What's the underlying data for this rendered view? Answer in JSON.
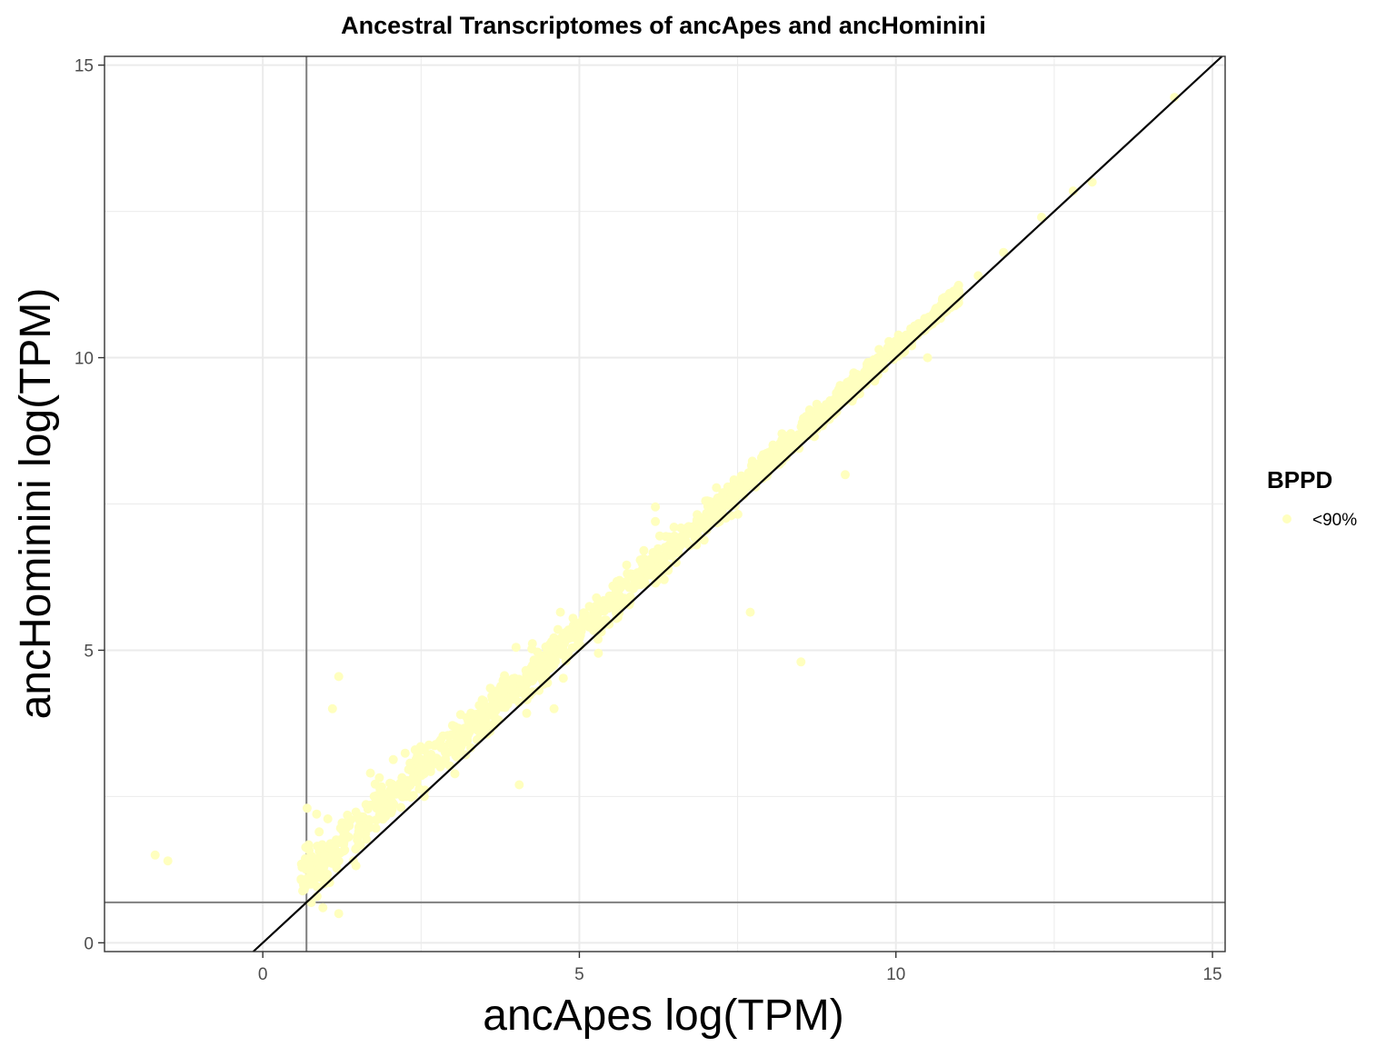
{
  "chart_data": {
    "type": "scatter",
    "title": "Ancestral Transcriptomes of ancApes and ancHominini",
    "xlabel": "ancApes log(TPM)",
    "ylabel": "ancHominini log(TPM)",
    "xlim": [
      -2.5,
      15.2
    ],
    "ylim": [
      -0.15,
      15.15
    ],
    "x_ticks": [
      0,
      5,
      10,
      15
    ],
    "y_ticks": [
      0,
      5,
      10,
      15
    ],
    "x_tick_labels": [
      "0",
      "5",
      "10",
      "15"
    ],
    "y_tick_labels": [
      "0",
      "5",
      "10",
      "15"
    ],
    "grid": true,
    "reference_lines": {
      "diagonal": {
        "slope": 1,
        "intercept": 0,
        "color": "#000000"
      },
      "vertical_x": 0.69,
      "horizontal_y": 0.69,
      "threshold_color": "#7f7f7f"
    },
    "legend": {
      "title": "BPPD",
      "position": "right",
      "entries": [
        {
          "label": "<90%",
          "color": "#FFFFBF"
        }
      ]
    },
    "series": [
      {
        "name": "<90%",
        "color": "#FFFFBF",
        "outliers": [
          [
            -1.7,
            1.5
          ],
          [
            -1.5,
            1.4
          ],
          [
            0.7,
            2.3
          ],
          [
            0.85,
            2.2
          ],
          [
            1.1,
            4.0
          ],
          [
            1.2,
            4.55
          ],
          [
            1.7,
            2.9
          ],
          [
            1.2,
            0.5
          ],
          [
            0.95,
            0.6
          ],
          [
            2.55,
            2.5
          ],
          [
            4.05,
            2.7
          ],
          [
            4.0,
            5.05
          ],
          [
            4.6,
            4.0
          ],
          [
            4.7,
            5.65
          ],
          [
            5.3,
            4.95
          ],
          [
            6.2,
            7.45
          ],
          [
            6.2,
            7.2
          ],
          [
            7.7,
            5.65
          ],
          [
            8.5,
            4.8
          ],
          [
            10.5,
            10.0
          ],
          [
            8.2,
            8.7
          ],
          [
            9.2,
            8.0
          ],
          [
            9.9,
            10.2
          ],
          [
            14.4,
            14.45
          ],
          [
            13.1,
            13.0
          ],
          [
            12.8,
            12.85
          ],
          [
            12.3,
            12.4
          ],
          [
            11.7,
            11.8
          ],
          [
            11.3,
            11.4
          ],
          [
            10.8,
            10.9
          ],
          [
            6.85,
            6.8
          ],
          [
            7.4,
            7.3
          ]
        ],
        "trend": {
          "from_x": 0.6,
          "to_x": 11.0,
          "count": 1500,
          "offset_at_low_x": 0.5,
          "offset_at_high_x": 0.1,
          "spread_at_low_x": 0.45,
          "spread_at_high_x": 0.12,
          "y_min": 0.5
        }
      }
    ]
  }
}
